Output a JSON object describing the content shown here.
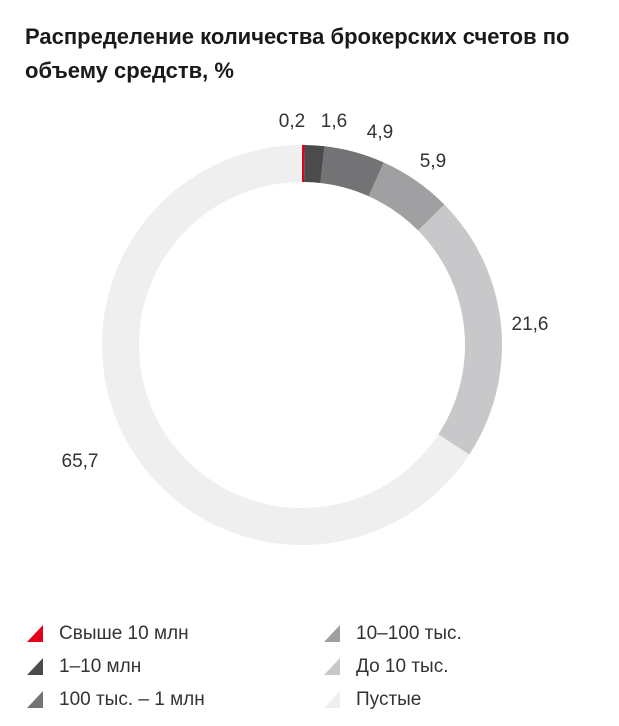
{
  "chart_data": {
    "type": "pie",
    "title": "Распределение количества брокерских счетов по объему средств, %",
    "categories": [
      "Свыше 10 млн",
      "1–10 млн",
      "100 тыс. – 1 млн",
      "10–100 тыс.",
      "До 10 тыс.",
      "Пустые"
    ],
    "values": [
      0.2,
      1.6,
      4.9,
      5.9,
      21.6,
      65.7
    ],
    "value_labels": [
      "0,2",
      "1,6",
      "4,9",
      "5,9",
      "21,6",
      "65,7"
    ],
    "colors": [
      "#e3001b",
      "#4b4b4d",
      "#737375",
      "#a0a0a2",
      "#c8c8ca",
      "#efefef"
    ],
    "donut": true
  }
}
